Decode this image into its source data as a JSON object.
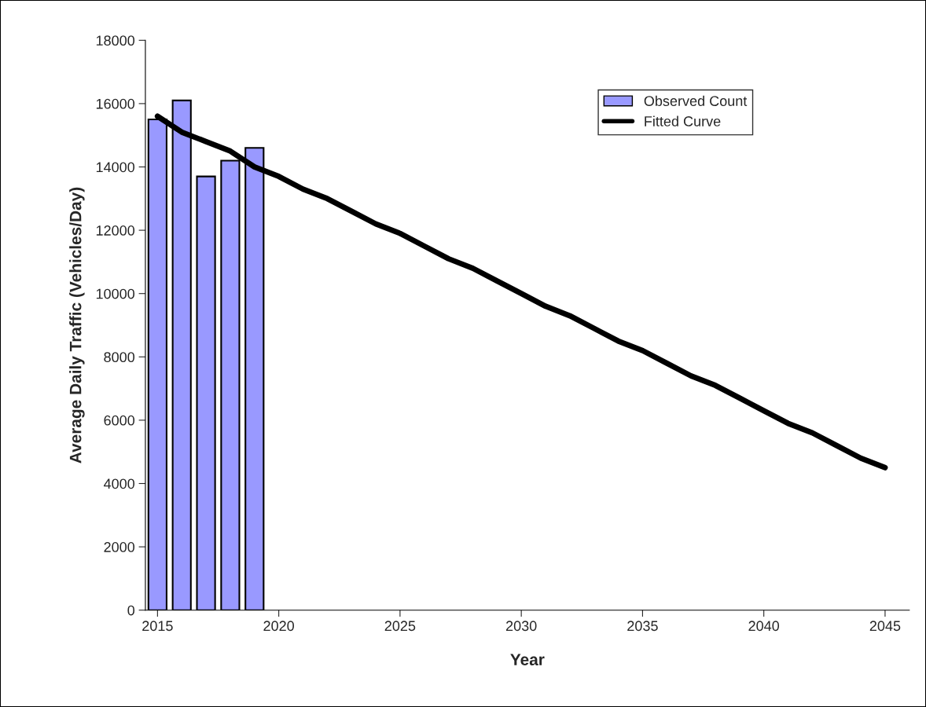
{
  "chart_data": {
    "type": "bar",
    "xlabel": "Year",
    "ylabel": "Average Daily Traffic (Vehicles/Day)",
    "xlim": [
      2014.5,
      2046
    ],
    "xticks": [
      2015,
      2020,
      2025,
      2030,
      2035,
      2040,
      2045
    ],
    "ylim": [
      0,
      18000
    ],
    "yticks": [
      0,
      2000,
      4000,
      6000,
      8000,
      10000,
      12000,
      14000,
      16000,
      18000
    ],
    "grid": false,
    "legend": "top right",
    "series": [
      {
        "name": "Observed Count",
        "color": "#9999ff",
        "x": [
          2015,
          2016,
          2017,
          2018,
          2019
        ],
        "values": [
          15500,
          16100,
          13700,
          14200,
          14600
        ]
      },
      {
        "name": "Fitted Curve",
        "type": "line",
        "color": "#000000",
        "x": [
          2015,
          2016,
          2017,
          2018,
          2019,
          2020,
          2021,
          2022,
          2023,
          2024,
          2025,
          2026,
          2027,
          2028,
          2029,
          2030,
          2031,
          2032,
          2033,
          2034,
          2035,
          2036,
          2037,
          2038,
          2039,
          2040,
          2041,
          2042,
          2043,
          2044,
          2045
        ],
        "values": [
          15600,
          15100,
          14800,
          14500,
          14000,
          13700,
          13300,
          13000,
          12600,
          12200,
          11900,
          11500,
          11100,
          10800,
          10400,
          10000,
          9600,
          9300,
          8900,
          8500,
          8200,
          7800,
          7400,
          7100,
          6700,
          6300,
          5900,
          5600,
          5200,
          4800,
          4500
        ]
      }
    ]
  }
}
